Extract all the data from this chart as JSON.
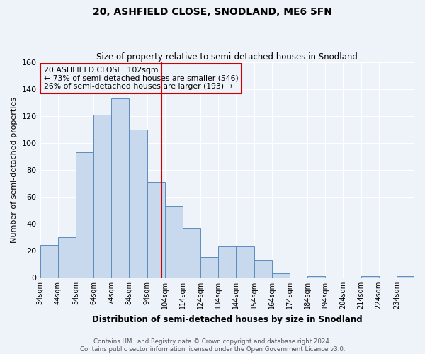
{
  "title": "20, ASHFIELD CLOSE, SNODLAND, ME6 5FN",
  "subtitle": "Size of property relative to semi-detached houses in Snodland",
  "xlabel": "Distribution of semi-detached houses by size in Snodland",
  "ylabel": "Number of semi-detached properties",
  "footer_line1": "Contains HM Land Registry data © Crown copyright and database right 2024.",
  "footer_line2": "Contains public sector information licensed under the Open Government Licence v3.0.",
  "annotation_line1": "20 ASHFIELD CLOSE: 102sqm",
  "annotation_line2": "← 73% of semi-detached houses are smaller (546)",
  "annotation_line3": "26% of semi-detached houses are larger (193) →",
  "property_value": 102,
  "bin_edges": [
    34,
    44,
    54,
    64,
    74,
    84,
    94,
    104,
    114,
    124,
    134,
    144,
    154,
    164,
    174,
    184,
    194,
    204,
    214,
    224,
    234,
    244
  ],
  "bin_counts": [
    24,
    30,
    93,
    121,
    133,
    110,
    71,
    53,
    37,
    15,
    23,
    23,
    13,
    3,
    0,
    1,
    0,
    0,
    1,
    0,
    1
  ],
  "bar_facecolor": "#c9d9ed",
  "bar_edgecolor": "#5b8dc0",
  "vline_color": "#cc0000",
  "annotation_box_edgecolor": "#cc0000",
  "background_color": "#eef2f9",
  "grid_color": "#ffffff",
  "ylim": [
    0,
    160
  ],
  "yticks": [
    0,
    20,
    40,
    60,
    80,
    100,
    120,
    140,
    160
  ]
}
